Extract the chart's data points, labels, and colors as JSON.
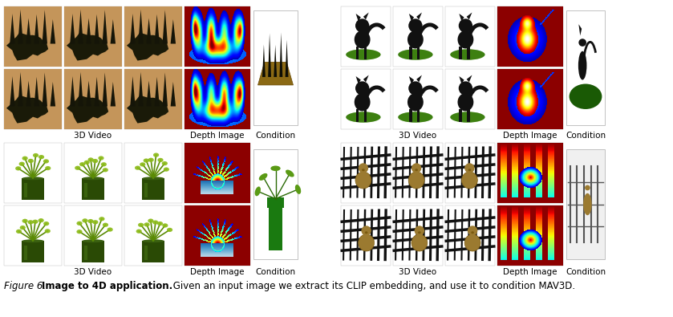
{
  "figure_caption_italic": "Figure 6.",
  "figure_caption_bold": "Image to 4D application.",
  "figure_caption_normal": " Given an input image we extract its CLIP embedding, and use it to condition MAV3D.",
  "background_color": "#ffffff",
  "label_3d_video": "3D Video",
  "label_depth_image": "Depth Image",
  "label_condition": "Condition",
  "label_fontsize": 7.5,
  "caption_fontsize": 8.5,
  "figsize": [
    8.39,
    3.95
  ],
  "dpi": 100,
  "dark_red": "#8B0000",
  "forest_bg": "#c8a06e",
  "forest_tree": "#1a1a08",
  "cat_grass": "#3a7a10",
  "cat_body": "#111111",
  "plant_pot": "#8fba12",
  "plant_stem": "#5a8a05",
  "fence_color": "#111111",
  "bear_color": "#9B7A30"
}
